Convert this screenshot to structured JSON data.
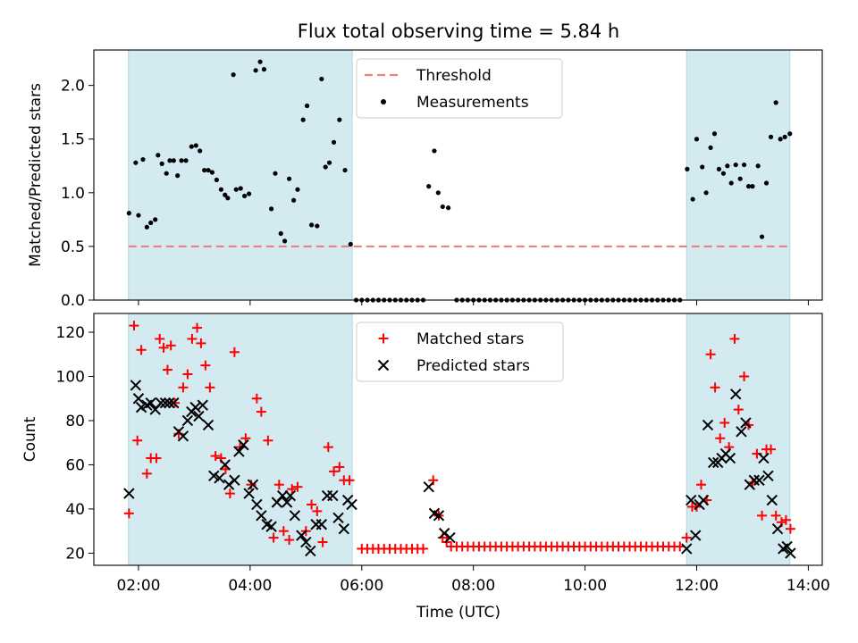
{
  "chart_data": {
    "title": "Flux total observing time = 5.84 h",
    "xlabel": "Time (UTC)",
    "x_unit": "hours UTC (decimal)",
    "xlim": [
      1.2,
      14.25
    ],
    "xticks": [
      {
        "value": 2,
        "label": "02:00"
      },
      {
        "value": 4,
        "label": "04:00"
      },
      {
        "value": 6,
        "label": "06:00"
      },
      {
        "value": 8,
        "label": "08:00"
      },
      {
        "value": 10,
        "label": "10:00"
      },
      {
        "value": 12,
        "label": "12:00"
      },
      {
        "value": 14,
        "label": "14:00"
      }
    ],
    "shaded_intervals": [
      {
        "start": 1.82,
        "end": 5.83
      },
      {
        "start": 11.82,
        "end": 13.67
      }
    ],
    "colors": {
      "shade": "#d4eaf1",
      "shade_edge": "#add8e6",
      "threshold": "#f08080",
      "measurement": "#000000",
      "matched": "#ff0000",
      "predicted": "#000000"
    },
    "top": {
      "type": "scatter",
      "ylabel": "Matched/Predicted stars",
      "ylim": [
        0,
        2.33
      ],
      "yticks": [
        "0.0",
        "0.5",
        "1.0",
        "1.5",
        "2.0"
      ],
      "threshold": 0.5,
      "legend": {
        "threshold": "Threshold",
        "measurements": "Measurements"
      },
      "measurements": [
        [
          1.83,
          0.81
        ],
        [
          1.95,
          1.28
        ],
        [
          2.0,
          0.79
        ],
        [
          2.08,
          1.31
        ],
        [
          2.15,
          0.68
        ],
        [
          2.22,
          0.72
        ],
        [
          2.3,
          0.75
        ],
        [
          2.35,
          1.35
        ],
        [
          2.42,
          1.27
        ],
        [
          2.5,
          1.18
        ],
        [
          2.56,
          1.3
        ],
        [
          2.63,
          1.3
        ],
        [
          2.7,
          1.16
        ],
        [
          2.77,
          1.3
        ],
        [
          2.85,
          1.3
        ],
        [
          2.95,
          1.43
        ],
        [
          3.03,
          1.44
        ],
        [
          3.1,
          1.39
        ],
        [
          3.18,
          1.21
        ],
        [
          3.25,
          1.21
        ],
        [
          3.32,
          1.19
        ],
        [
          3.4,
          1.12
        ],
        [
          3.48,
          1.03
        ],
        [
          3.55,
          0.98
        ],
        [
          3.6,
          0.95
        ],
        [
          3.7,
          2.1
        ],
        [
          3.75,
          1.03
        ],
        [
          3.83,
          1.04
        ],
        [
          3.9,
          0.97
        ],
        [
          3.98,
          0.99
        ],
        [
          4.1,
          2.14
        ],
        [
          4.18,
          2.22
        ],
        [
          4.25,
          2.15
        ],
        [
          4.38,
          0.85
        ],
        [
          4.45,
          1.18
        ],
        [
          4.55,
          0.62
        ],
        [
          4.62,
          0.55
        ],
        [
          4.7,
          1.13
        ],
        [
          4.78,
          0.93
        ],
        [
          4.85,
          1.03
        ],
        [
          4.95,
          1.68
        ],
        [
          5.02,
          1.81
        ],
        [
          5.1,
          0.7
        ],
        [
          5.2,
          0.69
        ],
        [
          5.28,
          2.06
        ],
        [
          5.35,
          1.24
        ],
        [
          5.42,
          1.28
        ],
        [
          5.5,
          1.47
        ],
        [
          5.6,
          1.68
        ],
        [
          5.7,
          1.21
        ],
        [
          5.8,
          0.52
        ],
        [
          5.9,
          0
        ],
        [
          6.0,
          0
        ],
        [
          6.1,
          0
        ],
        [
          6.2,
          0
        ],
        [
          6.3,
          0
        ],
        [
          6.4,
          0
        ],
        [
          6.5,
          0
        ],
        [
          6.6,
          0
        ],
        [
          6.7,
          0
        ],
        [
          6.8,
          0
        ],
        [
          6.9,
          0
        ],
        [
          7.0,
          0
        ],
        [
          7.1,
          0
        ],
        [
          7.2,
          1.06
        ],
        [
          7.3,
          1.39
        ],
        [
          7.37,
          1.0
        ],
        [
          7.45,
          0.87
        ],
        [
          7.55,
          0.86
        ],
        [
          7.7,
          0
        ],
        [
          7.8,
          0
        ],
        [
          7.9,
          0
        ],
        [
          8.0,
          0
        ],
        [
          8.1,
          0
        ],
        [
          8.2,
          0
        ],
        [
          8.3,
          0
        ],
        [
          8.4,
          0
        ],
        [
          8.5,
          0
        ],
        [
          8.6,
          0
        ],
        [
          8.7,
          0
        ],
        [
          8.8,
          0
        ],
        [
          8.9,
          0
        ],
        [
          9.0,
          0
        ],
        [
          9.1,
          0
        ],
        [
          9.2,
          0
        ],
        [
          9.3,
          0
        ],
        [
          9.4,
          0
        ],
        [
          9.5,
          0
        ],
        [
          9.6,
          0
        ],
        [
          9.7,
          0
        ],
        [
          9.8,
          0
        ],
        [
          9.9,
          0
        ],
        [
          10.0,
          0
        ],
        [
          10.1,
          0
        ],
        [
          10.2,
          0
        ],
        [
          10.3,
          0
        ],
        [
          10.4,
          0
        ],
        [
          10.5,
          0
        ],
        [
          10.6,
          0
        ],
        [
          10.7,
          0
        ],
        [
          10.8,
          0
        ],
        [
          10.9,
          0
        ],
        [
          11.0,
          0
        ],
        [
          11.1,
          0
        ],
        [
          11.2,
          0
        ],
        [
          11.3,
          0
        ],
        [
          11.4,
          0
        ],
        [
          11.5,
          0
        ],
        [
          11.6,
          0
        ],
        [
          11.7,
          0
        ],
        [
          11.83,
          1.22
        ],
        [
          11.93,
          0.94
        ],
        [
          12.0,
          1.5
        ],
        [
          12.1,
          1.24
        ],
        [
          12.17,
          1.0
        ],
        [
          12.25,
          1.42
        ],
        [
          12.32,
          1.55
        ],
        [
          12.4,
          1.22
        ],
        [
          12.48,
          1.18
        ],
        [
          12.55,
          1.25
        ],
        [
          12.62,
          1.09
        ],
        [
          12.7,
          1.26
        ],
        [
          12.78,
          1.13
        ],
        [
          12.85,
          1.26
        ],
        [
          12.93,
          1.06
        ],
        [
          13.0,
          1.06
        ],
        [
          13.1,
          1.25
        ],
        [
          13.17,
          0.59
        ],
        [
          13.25,
          1.09
        ],
        [
          13.33,
          1.52
        ],
        [
          13.42,
          1.84
        ],
        [
          13.5,
          1.5
        ],
        [
          13.58,
          1.52
        ],
        [
          13.67,
          1.55
        ]
      ]
    },
    "bottom": {
      "type": "scatter",
      "ylabel": "Count",
      "ylim": [
        14.5,
        128.5
      ],
      "yticks": [
        "20",
        "40",
        "60",
        "80",
        "100",
        "120"
      ],
      "legend": {
        "matched": "Matched stars",
        "predicted": "Predicted stars"
      },
      "matched": [
        [
          1.83,
          38
        ],
        [
          1.92,
          123
        ],
        [
          1.98,
          71
        ],
        [
          2.05,
          112
        ],
        [
          2.15,
          56
        ],
        [
          2.22,
          63
        ],
        [
          2.32,
          63
        ],
        [
          2.38,
          117
        ],
        [
          2.45,
          113
        ],
        [
          2.52,
          103
        ],
        [
          2.58,
          114
        ],
        [
          2.65,
          88
        ],
        [
          2.72,
          74
        ],
        [
          2.8,
          95
        ],
        [
          2.88,
          101
        ],
        [
          2.96,
          117
        ],
        [
          3.05,
          122
        ],
        [
          3.12,
          115
        ],
        [
          3.2,
          105
        ],
        [
          3.28,
          95
        ],
        [
          3.38,
          64
        ],
        [
          3.48,
          63
        ],
        [
          3.56,
          58
        ],
        [
          3.64,
          47
        ],
        [
          3.72,
          111
        ],
        [
          3.82,
          68
        ],
        [
          3.92,
          72
        ],
        [
          4.02,
          51
        ],
        [
          4.12,
          90
        ],
        [
          4.2,
          84
        ],
        [
          4.32,
          71
        ],
        [
          4.42,
          27
        ],
        [
          4.52,
          51
        ],
        [
          4.6,
          30
        ],
        [
          4.7,
          26
        ],
        [
          4.75,
          49
        ],
        [
          4.85,
          50
        ],
        [
          5.0,
          30
        ],
        [
          5.1,
          42
        ],
        [
          5.2,
          39
        ],
        [
          5.3,
          25
        ],
        [
          5.4,
          68
        ],
        [
          5.5,
          57
        ],
        [
          5.6,
          59
        ],
        [
          5.68,
          53
        ],
        [
          5.78,
          53
        ],
        [
          6.0,
          22
        ],
        [
          6.1,
          22
        ],
        [
          6.2,
          22
        ],
        [
          6.3,
          22
        ],
        [
          6.4,
          22
        ],
        [
          6.5,
          22
        ],
        [
          6.6,
          22
        ],
        [
          6.7,
          22
        ],
        [
          6.8,
          22
        ],
        [
          6.9,
          22
        ],
        [
          7.0,
          22
        ],
        [
          7.1,
          22
        ],
        [
          7.28,
          53
        ],
        [
          7.38,
          37
        ],
        [
          7.45,
          27
        ],
        [
          7.52,
          25
        ],
        [
          7.6,
          23
        ],
        [
          7.7,
          23
        ],
        [
          7.8,
          23
        ],
        [
          7.9,
          23
        ],
        [
          8.0,
          23
        ],
        [
          8.1,
          23
        ],
        [
          8.2,
          23
        ],
        [
          8.3,
          23
        ],
        [
          8.4,
          23
        ],
        [
          8.5,
          23
        ],
        [
          8.6,
          23
        ],
        [
          8.7,
          23
        ],
        [
          8.8,
          23
        ],
        [
          8.9,
          23
        ],
        [
          9.0,
          23
        ],
        [
          9.1,
          23
        ],
        [
          9.2,
          23
        ],
        [
          9.3,
          23
        ],
        [
          9.4,
          23
        ],
        [
          9.5,
          23
        ],
        [
          9.6,
          23
        ],
        [
          9.7,
          23
        ],
        [
          9.8,
          23
        ],
        [
          9.9,
          23
        ],
        [
          10.0,
          23
        ],
        [
          10.1,
          23
        ],
        [
          10.2,
          23
        ],
        [
          10.3,
          23
        ],
        [
          10.4,
          23
        ],
        [
          10.5,
          23
        ],
        [
          10.6,
          23
        ],
        [
          10.7,
          23
        ],
        [
          10.8,
          23
        ],
        [
          10.9,
          23
        ],
        [
          11.0,
          23
        ],
        [
          11.1,
          23
        ],
        [
          11.2,
          23
        ],
        [
          11.3,
          23
        ],
        [
          11.4,
          23
        ],
        [
          11.5,
          23
        ],
        [
          11.6,
          23
        ],
        [
          11.7,
          23
        ],
        [
          11.82,
          27
        ],
        [
          11.92,
          41
        ],
        [
          12.0,
          41
        ],
        [
          12.08,
          51
        ],
        [
          12.18,
          44
        ],
        [
          12.25,
          110
        ],
        [
          12.33,
          95
        ],
        [
          12.42,
          72
        ],
        [
          12.5,
          79
        ],
        [
          12.58,
          68
        ],
        [
          12.68,
          117
        ],
        [
          12.75,
          85
        ],
        [
          12.85,
          100
        ],
        [
          12.93,
          78
        ],
        [
          13.0,
          52
        ],
        [
          13.08,
          65
        ],
        [
          13.17,
          37
        ],
        [
          13.25,
          67
        ],
        [
          13.33,
          67
        ],
        [
          13.42,
          37
        ],
        [
          13.52,
          34
        ],
        [
          13.6,
          35
        ],
        [
          13.68,
          31
        ]
      ],
      "predicted": [
        [
          1.83,
          47
        ],
        [
          1.95,
          96
        ],
        [
          2.0,
          90
        ],
        [
          2.05,
          86
        ],
        [
          2.15,
          87
        ],
        [
          2.22,
          88
        ],
        [
          2.3,
          85
        ],
        [
          2.4,
          88
        ],
        [
          2.48,
          88
        ],
        [
          2.55,
          88
        ],
        [
          2.63,
          88
        ],
        [
          2.72,
          75
        ],
        [
          2.8,
          73
        ],
        [
          2.88,
          80
        ],
        [
          2.95,
          84
        ],
        [
          3.02,
          86
        ],
        [
          3.08,
          82
        ],
        [
          3.15,
          87
        ],
        [
          3.25,
          78
        ],
        [
          3.35,
          55
        ],
        [
          3.45,
          54
        ],
        [
          3.55,
          60
        ],
        [
          3.62,
          51
        ],
        [
          3.72,
          53
        ],
        [
          3.8,
          66
        ],
        [
          3.88,
          69
        ],
        [
          3.98,
          47
        ],
        [
          4.05,
          51
        ],
        [
          4.12,
          42
        ],
        [
          4.2,
          37
        ],
        [
          4.3,
          33
        ],
        [
          4.38,
          32
        ],
        [
          4.48,
          43
        ],
        [
          4.58,
          46
        ],
        [
          4.66,
          43
        ],
        [
          4.72,
          46
        ],
        [
          4.8,
          37
        ],
        [
          4.92,
          28
        ],
        [
          5.0,
          25
        ],
        [
          5.08,
          21
        ],
        [
          5.18,
          33
        ],
        [
          5.28,
          33
        ],
        [
          5.38,
          46
        ],
        [
          5.48,
          46
        ],
        [
          5.58,
          36
        ],
        [
          5.68,
          31
        ],
        [
          5.75,
          44
        ],
        [
          5.82,
          42
        ],
        [
          7.2,
          50
        ],
        [
          7.3,
          38
        ],
        [
          7.38,
          37
        ],
        [
          7.48,
          29
        ],
        [
          7.58,
          27
        ],
        [
          11.82,
          22
        ],
        [
          11.9,
          44
        ],
        [
          11.98,
          28
        ],
        [
          12.05,
          42
        ],
        [
          12.12,
          44
        ],
        [
          12.2,
          78
        ],
        [
          12.3,
          61
        ],
        [
          12.38,
          61
        ],
        [
          12.45,
          63
        ],
        [
          12.52,
          65
        ],
        [
          12.6,
          63
        ],
        [
          12.7,
          92
        ],
        [
          12.8,
          75
        ],
        [
          12.88,
          79
        ],
        [
          12.95,
          51
        ],
        [
          13.03,
          53
        ],
        [
          13.12,
          53
        ],
        [
          13.2,
          63
        ],
        [
          13.28,
          55
        ],
        [
          13.35,
          44
        ],
        [
          13.45,
          31
        ],
        [
          13.55,
          22
        ],
        [
          13.62,
          23
        ],
        [
          13.68,
          20
        ]
      ]
    }
  }
}
